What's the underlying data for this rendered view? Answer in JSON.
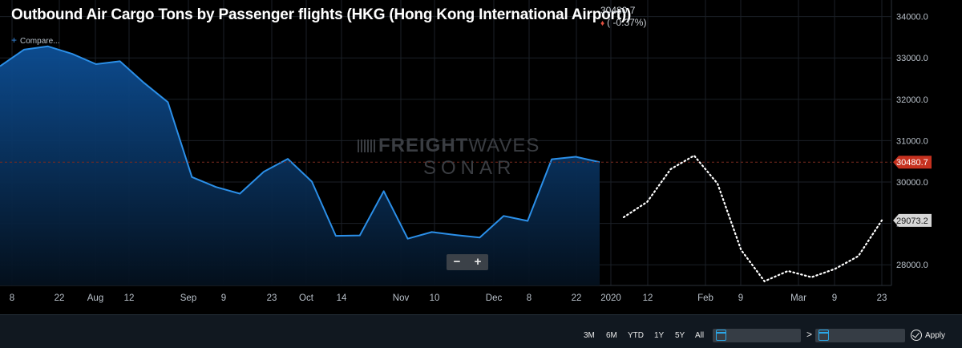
{
  "header": {
    "title": "Outbound Air Cargo Tons by Passenger flights (HKG (Hong Kong International Airport))",
    "last_value": "30480.7",
    "change": "( -0.37%)",
    "compare_label": "Compare..."
  },
  "zoom": {
    "minus": "−",
    "plus": "+"
  },
  "watermark": {
    "line1_bold": "FREIGHT",
    "line1_light": "WAVES",
    "line2": "SONAR"
  },
  "controls": {
    "ranges": [
      "3M",
      "6M",
      "YTD",
      "1Y",
      "5Y",
      "All"
    ],
    "chevron": ">",
    "apply": "Apply"
  },
  "colors": {
    "series": "#2b8fe8",
    "forecast": "#ffffff",
    "last_value_tag": "#c6311f",
    "forecast_tag": "#d6d6d6"
  },
  "chart_data": {
    "type": "line",
    "ylim": [
      27500,
      34400
    ],
    "yticks": [
      28000,
      29000,
      30000,
      31000,
      32000,
      33000,
      34000
    ],
    "ytick_labels": [
      "28000.0",
      "29000.0",
      "30000.0",
      "31000.0",
      "32000.0",
      "33000.0",
      "34000.0"
    ],
    "x_tick_labels": [
      "8",
      "22",
      "Aug",
      "12",
      "Sep",
      "9",
      "23",
      "Oct",
      "14",
      "Nov",
      "10",
      "Dec",
      "8",
      "22",
      "2020",
      "12",
      "Feb",
      "9",
      "Mar",
      "9",
      "23"
    ],
    "reference_line": 30480.7,
    "value_tags": [
      "30480.7",
      "29073.2"
    ],
    "series": [
      {
        "style": "area",
        "values": [
          32800,
          33200,
          33280,
          33100,
          32850,
          32920,
          32400,
          31930,
          30120,
          29880,
          29720,
          30250,
          30560,
          30010,
          28700,
          28710,
          29780,
          28630,
          28790,
          28720,
          28660,
          29180,
          29060,
          30550,
          30610,
          30481
        ]
      },
      {
        "style": "dotted",
        "values": [
          29150,
          29520,
          30310,
          30640,
          29960,
          28360,
          27600,
          27850,
          27700,
          27900,
          28210,
          29073
        ]
      }
    ]
  }
}
